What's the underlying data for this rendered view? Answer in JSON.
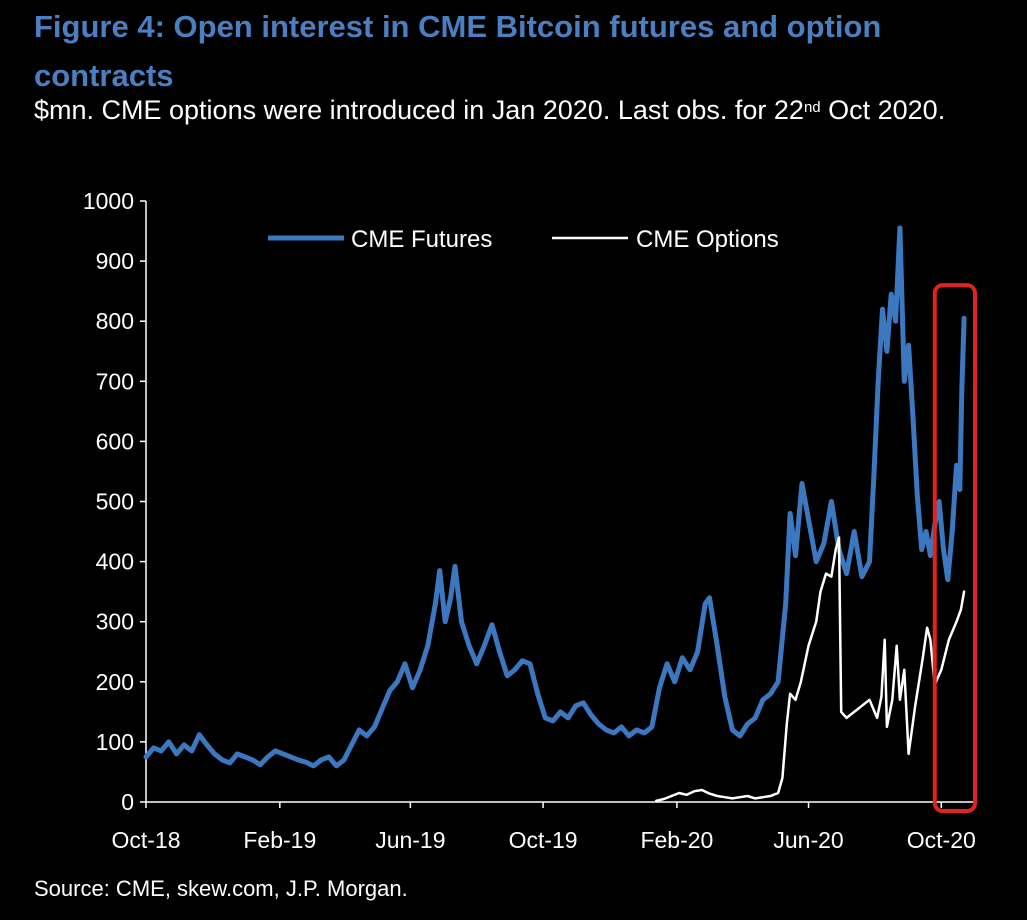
{
  "title": "Figure 4: Open interest in CME Bitcoin futures and option contracts",
  "subtitle": {
    "before_sup": "$mn. CME options were introduced in Jan 2020. Last obs. for 22",
    "sup": "nd",
    "after_sup": " Oct 2020."
  },
  "source": "Source: CME, skew.com, J.P. Morgan.",
  "colors": {
    "title": "#4a7fc1",
    "futures": "#3b78c0",
    "options": "#ffffff",
    "highlight_box": "#e0231c",
    "background": "#000000"
  },
  "chart_data": {
    "type": "line",
    "x_axis": {
      "range": [
        "2018-10-01",
        "2020-11-01"
      ],
      "ticks": [
        {
          "label": "Oct-18",
          "date": "2018-10-01"
        },
        {
          "label": "Feb-19",
          "date": "2019-02-01"
        },
        {
          "label": "Jun-19",
          "date": "2019-06-01"
        },
        {
          "label": "Oct-19",
          "date": "2019-10-01"
        },
        {
          "label": "Feb-20",
          "date": "2020-02-01"
        },
        {
          "label": "Jun-20",
          "date": "2020-06-01"
        },
        {
          "label": "Oct-20",
          "date": "2020-10-01"
        }
      ]
    },
    "y_axis": {
      "range": [
        0,
        1000
      ],
      "ticks": [
        "0",
        "100",
        "200",
        "300",
        "400",
        "500",
        "600",
        "700",
        "800",
        "900",
        "1000"
      ]
    },
    "legend": {
      "placement": "top-center"
    },
    "grid": false,
    "series": [
      {
        "name": "CME Futures",
        "points": [
          [
            "2018-10-01",
            75
          ],
          [
            "2018-10-08",
            90
          ],
          [
            "2018-10-15",
            85
          ],
          [
            "2018-10-22",
            100
          ],
          [
            "2018-10-29",
            80
          ],
          [
            "2018-11-05",
            95
          ],
          [
            "2018-11-12",
            85
          ],
          [
            "2018-11-19",
            112
          ],
          [
            "2018-11-26",
            95
          ],
          [
            "2018-12-03",
            80
          ],
          [
            "2018-12-10",
            70
          ],
          [
            "2018-12-17",
            65
          ],
          [
            "2018-12-24",
            80
          ],
          [
            "2018-12-31",
            75
          ],
          [
            "2019-01-07",
            70
          ],
          [
            "2019-01-14",
            62
          ],
          [
            "2019-01-21",
            75
          ],
          [
            "2019-01-28",
            85
          ],
          [
            "2019-02-04",
            80
          ],
          [
            "2019-02-11",
            75
          ],
          [
            "2019-02-18",
            70
          ],
          [
            "2019-02-25",
            66
          ],
          [
            "2019-03-04",
            60
          ],
          [
            "2019-03-11",
            70
          ],
          [
            "2019-03-18",
            75
          ],
          [
            "2019-03-25",
            60
          ],
          [
            "2019-04-01",
            70
          ],
          [
            "2019-04-08",
            95
          ],
          [
            "2019-04-15",
            120
          ],
          [
            "2019-04-22",
            110
          ],
          [
            "2019-04-29",
            125
          ],
          [
            "2019-05-06",
            155
          ],
          [
            "2019-05-13",
            185
          ],
          [
            "2019-05-20",
            200
          ],
          [
            "2019-05-27",
            230
          ],
          [
            "2019-06-03",
            190
          ],
          [
            "2019-06-10",
            220
          ],
          [
            "2019-06-17",
            260
          ],
          [
            "2019-06-24",
            330
          ],
          [
            "2019-06-28",
            385
          ],
          [
            "2019-07-03",
            300
          ],
          [
            "2019-07-08",
            340
          ],
          [
            "2019-07-12",
            392
          ],
          [
            "2019-07-18",
            300
          ],
          [
            "2019-07-25",
            260
          ],
          [
            "2019-08-01",
            230
          ],
          [
            "2019-08-08",
            260
          ],
          [
            "2019-08-15",
            295
          ],
          [
            "2019-08-22",
            250
          ],
          [
            "2019-08-29",
            210
          ],
          [
            "2019-09-05",
            220
          ],
          [
            "2019-09-12",
            235
          ],
          [
            "2019-09-19",
            230
          ],
          [
            "2019-09-26",
            180
          ],
          [
            "2019-10-03",
            140
          ],
          [
            "2019-10-10",
            135
          ],
          [
            "2019-10-17",
            150
          ],
          [
            "2019-10-24",
            140
          ],
          [
            "2019-10-31",
            160
          ],
          [
            "2019-11-07",
            165
          ],
          [
            "2019-11-14",
            145
          ],
          [
            "2019-11-21",
            130
          ],
          [
            "2019-11-28",
            120
          ],
          [
            "2019-12-05",
            115
          ],
          [
            "2019-12-12",
            125
          ],
          [
            "2019-12-19",
            110
          ],
          [
            "2019-12-26",
            120
          ],
          [
            "2020-01-02",
            115
          ],
          [
            "2020-01-09",
            125
          ],
          [
            "2020-01-16",
            190
          ],
          [
            "2020-01-23",
            230
          ],
          [
            "2020-01-30",
            200
          ],
          [
            "2020-02-06",
            240
          ],
          [
            "2020-02-13",
            220
          ],
          [
            "2020-02-20",
            250
          ],
          [
            "2020-02-27",
            330
          ],
          [
            "2020-03-02",
            340
          ],
          [
            "2020-03-09",
            260
          ],
          [
            "2020-03-16",
            175
          ],
          [
            "2020-03-23",
            120
          ],
          [
            "2020-03-30",
            110
          ],
          [
            "2020-04-06",
            130
          ],
          [
            "2020-04-13",
            140
          ],
          [
            "2020-04-20",
            170
          ],
          [
            "2020-04-27",
            180
          ],
          [
            "2020-05-04",
            200
          ],
          [
            "2020-05-11",
            330
          ],
          [
            "2020-05-15",
            480
          ],
          [
            "2020-05-20",
            410
          ],
          [
            "2020-05-26",
            530
          ],
          [
            "2020-06-01",
            470
          ],
          [
            "2020-06-08",
            400
          ],
          [
            "2020-06-15",
            430
          ],
          [
            "2020-06-22",
            500
          ],
          [
            "2020-06-29",
            420
          ],
          [
            "2020-07-06",
            380
          ],
          [
            "2020-07-13",
            450
          ],
          [
            "2020-07-20",
            375
          ],
          [
            "2020-07-27",
            400
          ],
          [
            "2020-07-31",
            540
          ],
          [
            "2020-08-04",
            700
          ],
          [
            "2020-08-08",
            820
          ],
          [
            "2020-08-12",
            750
          ],
          [
            "2020-08-16",
            845
          ],
          [
            "2020-08-20",
            800
          ],
          [
            "2020-08-24",
            955
          ],
          [
            "2020-08-28",
            700
          ],
          [
            "2020-09-01",
            760
          ],
          [
            "2020-09-05",
            640
          ],
          [
            "2020-09-09",
            510
          ],
          [
            "2020-09-13",
            420
          ],
          [
            "2020-09-17",
            450
          ],
          [
            "2020-09-21",
            410
          ],
          [
            "2020-09-25",
            460
          ],
          [
            "2020-09-29",
            500
          ],
          [
            "2020-10-03",
            420
          ],
          [
            "2020-10-07",
            370
          ],
          [
            "2020-10-11",
            450
          ],
          [
            "2020-10-15",
            560
          ],
          [
            "2020-10-18",
            520
          ],
          [
            "2020-10-20",
            690
          ],
          [
            "2020-10-22",
            805
          ]
        ]
      },
      {
        "name": "CME Options",
        "points": [
          [
            "2020-01-13",
            2
          ],
          [
            "2020-01-20",
            5
          ],
          [
            "2020-01-27",
            10
          ],
          [
            "2020-02-03",
            15
          ],
          [
            "2020-02-10",
            12
          ],
          [
            "2020-02-17",
            18
          ],
          [
            "2020-02-24",
            20
          ],
          [
            "2020-03-02",
            14
          ],
          [
            "2020-03-09",
            10
          ],
          [
            "2020-03-16",
            8
          ],
          [
            "2020-03-23",
            6
          ],
          [
            "2020-03-30",
            8
          ],
          [
            "2020-04-06",
            10
          ],
          [
            "2020-04-13",
            6
          ],
          [
            "2020-04-20",
            8
          ],
          [
            "2020-04-27",
            10
          ],
          [
            "2020-05-04",
            15
          ],
          [
            "2020-05-08",
            40
          ],
          [
            "2020-05-12",
            130
          ],
          [
            "2020-05-15",
            180
          ],
          [
            "2020-05-20",
            170
          ],
          [
            "2020-05-25",
            200
          ],
          [
            "2020-06-01",
            260
          ],
          [
            "2020-06-08",
            300
          ],
          [
            "2020-06-12",
            350
          ],
          [
            "2020-06-17",
            380
          ],
          [
            "2020-06-22",
            375
          ],
          [
            "2020-06-26",
            420
          ],
          [
            "2020-06-29",
            440
          ],
          [
            "2020-07-01",
            150
          ],
          [
            "2020-07-06",
            140
          ],
          [
            "2020-07-13",
            150
          ],
          [
            "2020-07-20",
            160
          ],
          [
            "2020-07-27",
            170
          ],
          [
            "2020-08-03",
            140
          ],
          [
            "2020-08-07",
            175
          ],
          [
            "2020-08-10",
            270
          ],
          [
            "2020-08-12",
            125
          ],
          [
            "2020-08-17",
            170
          ],
          [
            "2020-08-21",
            260
          ],
          [
            "2020-08-24",
            170
          ],
          [
            "2020-08-28",
            220
          ],
          [
            "2020-09-01",
            80
          ],
          [
            "2020-09-07",
            160
          ],
          [
            "2020-09-14",
            240
          ],
          [
            "2020-09-18",
            290
          ],
          [
            "2020-09-21",
            270
          ],
          [
            "2020-09-25",
            195
          ],
          [
            "2020-10-01",
            220
          ],
          [
            "2020-10-08",
            270
          ],
          [
            "2020-10-15",
            300
          ],
          [
            "2020-10-19",
            320
          ],
          [
            "2020-10-22",
            350
          ]
        ]
      }
    ],
    "annotations": [
      {
        "type": "highlight-box",
        "x_range": [
          "2020-09-25",
          "2020-11-01"
        ],
        "y_range": [
          0,
          860
        ]
      }
    ]
  }
}
